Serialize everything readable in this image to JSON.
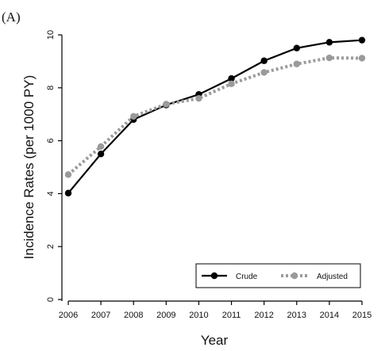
{
  "chart_data": {
    "type": "line",
    "panel_label": "(A)",
    "xlabel": "Year",
    "ylabel": "Incidence Rates (per 1000 PY)",
    "x": [
      2006,
      2007,
      2008,
      2009,
      2010,
      2011,
      2012,
      2013,
      2014,
      2015
    ],
    "xlim": [
      2006,
      2015
    ],
    "ylim": [
      0,
      10
    ],
    "yticks": [
      0,
      2,
      4,
      6,
      8,
      10
    ],
    "grid": false,
    "legend_placement": "bottom-right",
    "series": [
      {
        "name": "Crude",
        "values": [
          4.02,
          5.5,
          6.8,
          7.35,
          7.75,
          8.35,
          9.02,
          9.5,
          9.72,
          9.8
        ],
        "color": "#000000",
        "line_style": "solid"
      },
      {
        "name": "Adjusted",
        "values": [
          4.72,
          5.78,
          6.92,
          7.38,
          7.6,
          8.15,
          8.58,
          8.9,
          9.13,
          9.12
        ],
        "color": "#9a9a9a",
        "line_style": "dotted"
      }
    ]
  }
}
